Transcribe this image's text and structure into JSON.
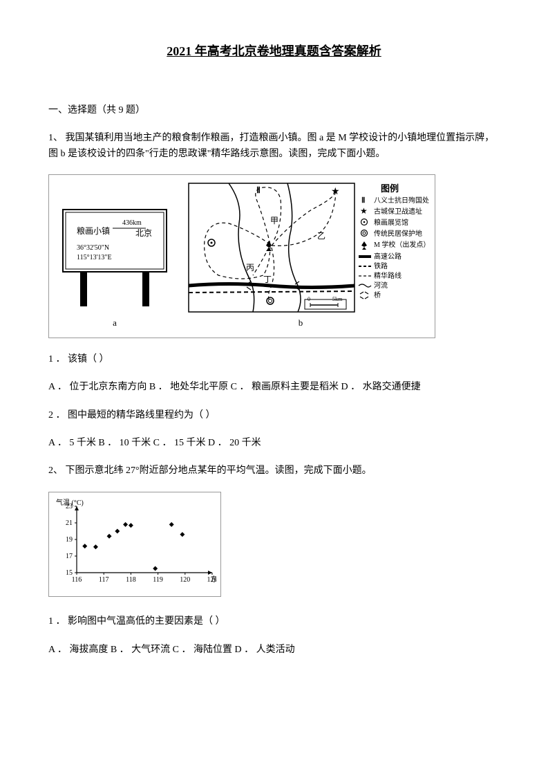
{
  "title": "2021 年高考北京卷地理真题含答案解析",
  "section1": "一、选择题（共 9 题）",
  "q1_intro": "1、 我国某镇利用当地主产的粮食制作粮画，打造粮画小镇。图 a 是 M 学校设计的小镇地理位置指示牌，图 b 是该校设计的四条\"行走的思政课\"精华路线示意图。读图，完成下面小题。",
  "sign": {
    "town": "粮画小镇",
    "dist": "436km",
    "city": "北京",
    "lat": "36°32'50\"N",
    "lon": "115°13'13\"E"
  },
  "legend": {
    "title": "图例",
    "items": [
      "八义士抗日殉国处",
      "古城保卫战遗址",
      "粮画展览馆",
      "传统民居保护地",
      "M 学校（出发点）",
      "高速公路",
      "铁路",
      "精华路线",
      "河流",
      "桥"
    ]
  },
  "map_labels": {
    "jia": "甲",
    "yi": "乙",
    "bing": "丙",
    "ding": "丁",
    "scale0": "0",
    "scale5": "5km"
  },
  "fig_label_a": "a",
  "fig_label_b": "b",
  "q1_1": "1 ． 该镇（  ）",
  "q1_1_opts": "A ． 位于北京东南方向 B ． 地处华北平原 C ． 粮画原料主要是稻米 D ． 水路交通便捷",
  "q1_2": "2 ． 图中最短的精华路线里程约为（  ）",
  "q1_2_opts": "A ． 5 千米 B ． 10 千米 C ． 15 千米 D ． 20 千米",
  "q2_intro": "2、 下图示意北纬 27°附近部分地点某年的平均气温。读图，完成下面小题。",
  "chart": {
    "ylabel": "气温 (°C)",
    "xlabel": "东经 (°)",
    "yticks": [
      "23",
      "21",
      "19",
      "17",
      "15"
    ],
    "xticks": [
      "116",
      "117",
      "118",
      "119",
      "120",
      "121"
    ],
    "yrange": [
      15,
      23
    ],
    "xrange": [
      116,
      121
    ],
    "points": [
      {
        "x": 116.3,
        "y": 18.2
      },
      {
        "x": 116.7,
        "y": 18.1
      },
      {
        "x": 117.2,
        "y": 19.4
      },
      {
        "x": 117.5,
        "y": 20.0
      },
      {
        "x": 117.8,
        "y": 20.8
      },
      {
        "x": 118.0,
        "y": 20.7
      },
      {
        "x": 118.9,
        "y": 15.5
      },
      {
        "x": 119.5,
        "y": 20.8
      },
      {
        "x": 119.9,
        "y": 19.6
      }
    ],
    "marker_color": "#000000",
    "marker_radius": 3.5,
    "axis_color": "#000000",
    "background": "#ffffff"
  },
  "q2_1": "1 ． 影响图中气温高低的主要因素是（  ）",
  "q2_1_opts": "A ． 海拔高度 B ． 大气环流 C ． 海陆位置 D ． 人类活动"
}
